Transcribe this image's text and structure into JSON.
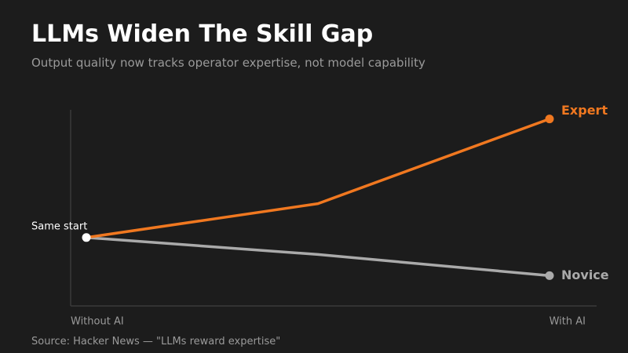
{
  "title": "LLMs Widen The Skill Gap",
  "subtitle": "Output quality now tracks operator expertise, not model capability",
  "source": "Source: Hacker News — \"LLMs reward expertise\"",
  "chart_data": {
    "type": "line",
    "categories": [
      "Without AI",
      "",
      "With AI"
    ],
    "x_tick_labels": [
      "Without AI",
      "With AI"
    ],
    "ylim": [
      0,
      100
    ],
    "grid": false,
    "legend": "inline labels at line ends",
    "series": [
      {
        "name": "Expert",
        "color": "#f07820",
        "values": [
          36,
          52,
          92
        ]
      },
      {
        "name": "Novice",
        "color": "#aaaaaa",
        "values": [
          36,
          28,
          18
        ]
      }
    ],
    "annotations": [
      {
        "text": "Same start",
        "category_index": 0,
        "value": 36
      }
    ],
    "colors": {
      "background": "#1c1c1c",
      "axis": "#3a3a3a",
      "tick_text": "#9a9a9a",
      "start_marker": "#ffffff",
      "annotation_text": "#ffffff"
    }
  }
}
